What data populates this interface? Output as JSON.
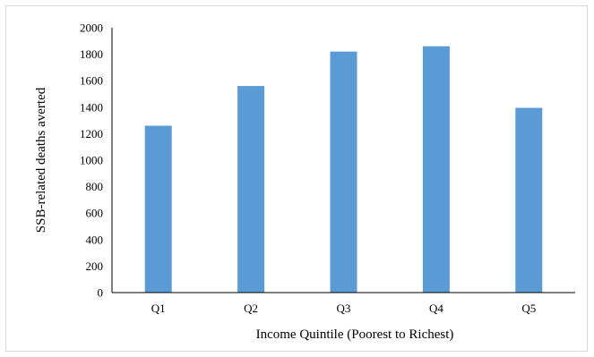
{
  "chart_data": {
    "type": "bar",
    "title": "",
    "xlabel": "Income Quintile (Poorest to Richest)",
    "ylabel": "SSB-related deaths averted",
    "categories": [
      "Q1",
      "Q2",
      "Q3",
      "Q4",
      "Q5"
    ],
    "values": [
      1260,
      1560,
      1820,
      1860,
      1395
    ],
    "ylim": [
      0,
      2000
    ],
    "yticks": [
      0,
      200,
      400,
      600,
      800,
      1000,
      1200,
      1400,
      1600,
      1800,
      2000
    ],
    "grid": false,
    "legend": "none",
    "bar_color": "#5b9bd5",
    "axis_color": "#000000"
  }
}
